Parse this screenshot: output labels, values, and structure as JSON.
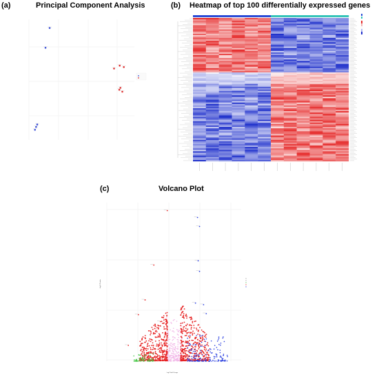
{
  "panels": {
    "a": {
      "letter": "(a)",
      "title": "Principal Component Analysis"
    },
    "b": {
      "letter": "(b)",
      "title": "Heatmap of top 100 differentially expressed genes"
    },
    "c": {
      "letter": "(c)",
      "title": "Volcano Plot"
    }
  },
  "chart_data": [
    {
      "type": "scatter",
      "title": "Principal Component Analysis",
      "xlabel": "",
      "ylabel": "",
      "grid": true,
      "legend": "right",
      "series": [
        {
          "color": "#3b4fd8",
          "points": [
            [
              -8.5,
              10.2
            ],
            [
              -9.6,
              6.1
            ],
            [
              -12.1,
              -10.3
            ],
            [
              -12.4,
              -10.9
            ],
            [
              -11.8,
              -9.8
            ]
          ]
        },
        {
          "color": "#e03030",
          "points": [
            [
              8.6,
              1.8
            ],
            [
              10.1,
              2.4
            ],
            [
              11.2,
              2.1
            ],
            [
              10.3,
              -2.2
            ],
            [
              10.8,
              -3.0
            ],
            [
              10.0,
              -2.6
            ]
          ]
        }
      ],
      "xlim": [
        -14,
        14
      ],
      "ylim": [
        -13,
        12
      ]
    },
    {
      "type": "heatmap",
      "title": "Heatmap of top 100 differentially expressed genes",
      "rows": 100,
      "columns": 12,
      "group_colors": [
        "#2a4bd7",
        "#35c4b8"
      ],
      "color_scale": [
        "#2233cc",
        "#ffffff",
        "#e62e2e"
      ],
      "legend": "top-right"
    },
    {
      "type": "scatter",
      "title": "Volcano Plot",
      "xlabel": "Log2 Fold Change",
      "ylabel": "-Log10 P-value",
      "grid": true,
      "legend": "right",
      "series": [
        {
          "color": "#e62222"
        },
        {
          "color": "#2a3fe0"
        },
        {
          "color": "#44c744"
        },
        {
          "color": "#f2b8e8"
        }
      ],
      "xlim": [
        -10,
        10
      ],
      "ylim": [
        0,
        300
      ]
    }
  ]
}
